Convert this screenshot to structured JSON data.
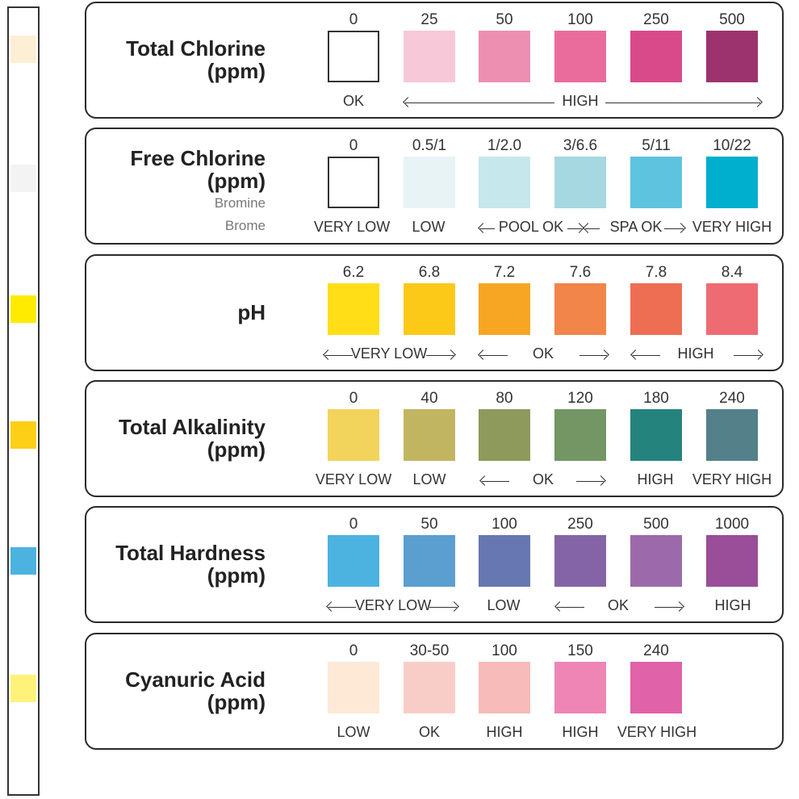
{
  "strip": {
    "pads": [
      {
        "name": "strip-pad-1",
        "color": "#fcefd4"
      },
      {
        "name": "strip-pad-2",
        "color": "#f3f3f3"
      },
      {
        "name": "strip-pad-3",
        "color": "#ffeb00"
      },
      {
        "name": "strip-pad-4",
        "color": "#fdd017"
      },
      {
        "name": "strip-pad-5",
        "color": "#4cb3e0"
      },
      {
        "name": "strip-pad-6",
        "color": "#fff27a"
      }
    ]
  },
  "panels": [
    {
      "id": "total-chlorine",
      "title": [
        "Total Chlorine",
        "(ppm)"
      ],
      "subtitle": [],
      "values": [
        "0",
        "25",
        "50",
        "100",
        "250",
        "500"
      ],
      "colors": [
        "#ffffff",
        "#f7c8d8",
        "#ec8fb1",
        "#e96c9d",
        "#d94a8b",
        "#9c336f"
      ],
      "scale_labels": [
        "OK",
        "HIGH"
      ]
    },
    {
      "id": "free-chlorine",
      "title": [
        "Free Chlorine",
        "(ppm)"
      ],
      "subtitle": [
        "Bromine",
        "Brome"
      ],
      "values": [
        "0",
        "0.5/1",
        "1/2.0",
        "3/6.6",
        "5/11",
        "10/22"
      ],
      "colors": [
        "#ffffff",
        "#e8f3f6",
        "#c6e7ec",
        "#a5d8e0",
        "#5ec3df",
        "#00aece"
      ],
      "scale_labels": [
        "VERY LOW",
        "LOW",
        "POOL OK",
        "SPA OK",
        "VERY HIGH"
      ]
    },
    {
      "id": "ph",
      "title": [
        "pH"
      ],
      "subtitle": [],
      "values": [
        "6.2",
        "6.8",
        "7.2",
        "7.6",
        "7.8",
        "8.4"
      ],
      "colors": [
        "#ffde17",
        "#fcc919",
        "#f6a623",
        "#f2854a",
        "#ee6e54",
        "#ee6b73"
      ],
      "scale_labels": [
        "VERY LOW",
        "OK",
        "HIGH"
      ]
    },
    {
      "id": "total-alkalinity",
      "title": [
        "Total Alkalinity",
        "(ppm)"
      ],
      "subtitle": [],
      "values": [
        "0",
        "40",
        "80",
        "120",
        "180",
        "240"
      ],
      "colors": [
        "#f2d45c",
        "#c2b562",
        "#8d9a5c",
        "#739664",
        "#25837e",
        "#54808a"
      ],
      "scale_labels": [
        "VERY LOW",
        "LOW",
        "OK",
        "HIGH",
        "VERY HIGH"
      ]
    },
    {
      "id": "total-hardness",
      "title": [
        "Total Hardness",
        "(ppm)"
      ],
      "subtitle": [],
      "values": [
        "0",
        "50",
        "100",
        "250",
        "500",
        "1000"
      ],
      "colors": [
        "#4cb3e0",
        "#5a9fd0",
        "#6777b1",
        "#8464a6",
        "#9c6aab",
        "#9a4d98"
      ],
      "scale_labels": [
        "VERY LOW",
        "LOW",
        "OK",
        "HIGH"
      ]
    },
    {
      "id": "cyanuric-acid",
      "title": [
        "Cyanuric Acid",
        "(ppm)"
      ],
      "subtitle": [],
      "values": [
        "0",
        "30-50",
        "100",
        "150",
        "240"
      ],
      "colors": [
        "#fde9d6",
        "#f9cdc7",
        "#f7bbb9",
        "#ee85b5",
        "#e062a8"
      ],
      "scale_labels": [
        "LOW",
        "OK",
        "HIGH",
        "HIGH",
        "VERY HIGH"
      ]
    }
  ]
}
